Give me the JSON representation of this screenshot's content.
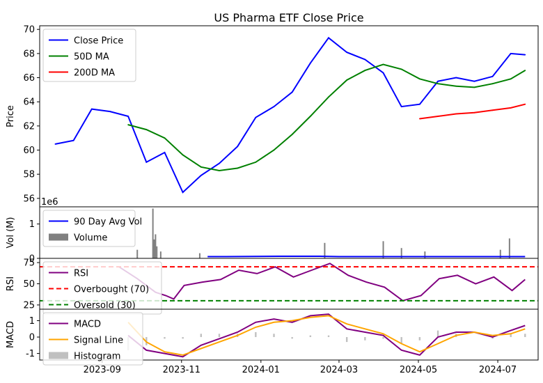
{
  "chart_data": [
    {
      "panel": "price",
      "type": "line",
      "title": "US Pharma ETF Close Price",
      "ylabel": "Price",
      "ylim": [
        55.3,
        70.3
      ],
      "yticks": [
        56,
        58,
        60,
        62,
        64,
        66,
        68,
        70
      ],
      "x_dates": [
        "2023-07-27",
        "2023-08-10",
        "2023-08-24",
        "2023-09-07",
        "2023-09-21",
        "2023-10-05",
        "2023-10-19",
        "2023-11-02",
        "2023-11-16",
        "2023-11-30",
        "2023-12-14",
        "2023-12-28",
        "2024-01-11",
        "2024-01-25",
        "2024-02-08",
        "2024-02-22",
        "2024-03-07",
        "2024-03-21",
        "2024-04-04",
        "2024-04-18",
        "2024-05-02",
        "2024-05-16",
        "2024-05-30",
        "2024-06-13",
        "2024-06-27",
        "2024-07-11",
        "2024-07-22"
      ],
      "series": [
        {
          "name": "Close Price",
          "color": "#0000ff",
          "values": [
            60.5,
            60.8,
            63.4,
            63.2,
            62.8,
            59.0,
            59.8,
            56.5,
            57.9,
            58.9,
            60.3,
            62.7,
            63.6,
            64.8,
            67.2,
            69.3,
            68.1,
            67.5,
            66.4,
            63.6,
            63.8,
            65.7,
            66.0,
            65.7,
            66.1,
            68.0,
            67.9
          ]
        },
        {
          "name": "50D MA",
          "color": "#008000",
          "values": [
            null,
            null,
            null,
            null,
            62.1,
            61.7,
            61.0,
            59.6,
            58.6,
            58.3,
            58.5,
            59.0,
            60.0,
            61.3,
            62.8,
            64.4,
            65.8,
            66.6,
            67.1,
            66.7,
            65.9,
            65.5,
            65.3,
            65.2,
            65.5,
            65.9,
            66.6
          ]
        },
        {
          "name": "200D MA",
          "color": "#ff0000",
          "values": [
            null,
            null,
            null,
            null,
            null,
            null,
            null,
            null,
            null,
            null,
            null,
            null,
            null,
            null,
            null,
            null,
            null,
            null,
            null,
            null,
            62.6,
            62.8,
            63.0,
            63.1,
            63.3,
            63.5,
            63.8
          ]
        }
      ],
      "legend": "top-left"
    },
    {
      "panel": "volume",
      "type": "bar",
      "ylabel": "Vol (M)",
      "scale_label": "1e6",
      "ylim": [
        0,
        1.5
      ],
      "yticks": [
        0,
        1
      ],
      "series": [
        {
          "name": "90 Day Avg Vol",
          "color": "#0000ff",
          "x": [
            "2023-11-21",
            "2023-12-05",
            "2024-01-15",
            "2024-02-15",
            "2024-03-01",
            "2024-04-15",
            "2024-05-15",
            "2024-06-15",
            "2024-07-22"
          ],
          "values": [
            0.05,
            0.05,
            0.06,
            0.06,
            0.05,
            0.05,
            0.05,
            0.05,
            0.05
          ]
        },
        {
          "name": "Volume",
          "color": "#808080",
          "x": [
            "2023-10-10",
            "2023-10-11",
            "2023-10-12",
            "2023-10-13",
            "2023-10-16",
            "2023-09-28",
            "2023-11-15",
            "2024-02-19",
            "2024-04-04",
            "2024-04-18",
            "2024-05-06",
            "2024-07-10",
            "2024-07-03"
          ],
          "values": [
            1.45,
            0.55,
            0.7,
            0.35,
            0.2,
            0.25,
            0.15,
            0.45,
            0.5,
            0.3,
            0.2,
            0.58,
            0.25
          ]
        }
      ],
      "legend": "top-left"
    },
    {
      "panel": "rsi",
      "type": "line",
      "ylabel": "RSI",
      "ylim": [
        20,
        80
      ],
      "yticks": [
        25,
        50,
        75
      ],
      "series": [
        {
          "name": "RSI",
          "color": "#800080",
          "x_dates": [
            "2023-09-14",
            "2023-09-28",
            "2023-10-12",
            "2023-10-20",
            "2023-10-26",
            "2023-11-03",
            "2023-11-17",
            "2023-12-01",
            "2023-12-15",
            "2023-12-29",
            "2024-01-12",
            "2024-01-26",
            "2024-02-09",
            "2024-02-23",
            "2024-03-08",
            "2024-03-22",
            "2024-04-05",
            "2024-04-19",
            "2024-05-03",
            "2024-05-17",
            "2024-05-31",
            "2024-06-14",
            "2024-06-28",
            "2024-07-12",
            "2024-07-22"
          ],
          "values": [
            70,
            56,
            40,
            36,
            32,
            48,
            52,
            55,
            66,
            62,
            70,
            58,
            66,
            74,
            60,
            52,
            46,
            30,
            36,
            56,
            60,
            50,
            58,
            42,
            55
          ]
        },
        {
          "name": "Overbought (70)",
          "color": "#ff0000",
          "value": 70
        },
        {
          "name": "Oversold (30)",
          "color": "#008000",
          "value": 30
        }
      ],
      "legend": "top-left"
    },
    {
      "panel": "macd",
      "type": "line",
      "ylabel": "MACD",
      "ylim": [
        -1.4,
        1.7
      ],
      "yticks": [
        -1,
        0,
        1
      ],
      "xticks": [
        "2023-09",
        "2023-11",
        "2024-01",
        "2024-03",
        "2024-05",
        "2024-07"
      ],
      "x_dates": [
        "2023-09-21",
        "2023-10-05",
        "2023-10-19",
        "2023-11-02",
        "2023-11-16",
        "2023-11-30",
        "2023-12-14",
        "2023-12-28",
        "2024-01-11",
        "2024-01-25",
        "2024-02-08",
        "2024-02-22",
        "2024-03-07",
        "2024-03-21",
        "2024-04-04",
        "2024-04-18",
        "2024-05-02",
        "2024-05-16",
        "2024-05-30",
        "2024-06-13",
        "2024-06-27",
        "2024-07-11",
        "2024-07-22"
      ],
      "series": [
        {
          "name": "MACD",
          "color": "#800080",
          "values": [
            0.1,
            -0.8,
            -1.0,
            -1.2,
            -0.5,
            -0.1,
            0.3,
            0.9,
            1.1,
            0.9,
            1.3,
            1.4,
            0.5,
            0.3,
            0.1,
            -0.8,
            -1.1,
            0.0,
            0.3,
            0.3,
            0.0,
            0.4,
            0.7
          ]
        },
        {
          "name": "Signal Line",
          "color": "#ffa500",
          "values": [
            0.9,
            -0.3,
            -0.9,
            -1.1,
            -0.7,
            -0.3,
            0.1,
            0.6,
            0.9,
            1.0,
            1.2,
            1.3,
            0.8,
            0.5,
            0.2,
            -0.4,
            -0.9,
            -0.4,
            0.1,
            0.3,
            0.1,
            0.2,
            0.5
          ]
        },
        {
          "name": "Histogram",
          "color": "#c0c0c0"
        }
      ],
      "legend": "top-left"
    }
  ]
}
